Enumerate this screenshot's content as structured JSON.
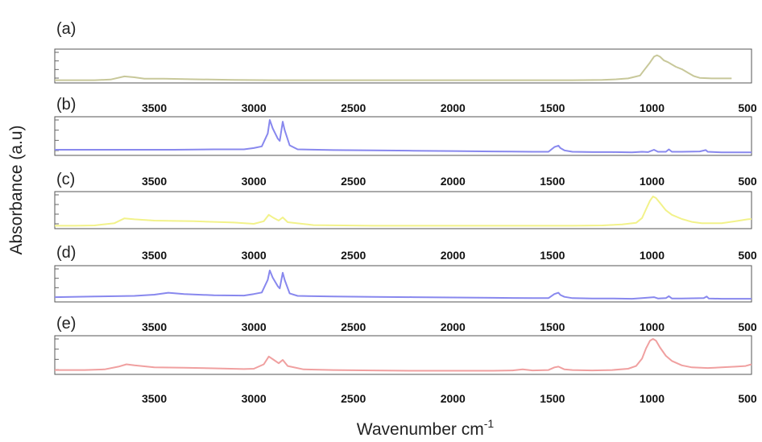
{
  "chart_data": {
    "type": "line",
    "xlabel": "Wavenumber cm",
    "xlabel_superscript": "-1",
    "ylabel": "Absorbance (a.u)",
    "x_reversed": true,
    "xlim": [
      4000,
      500
    ],
    "x_ticks": [
      3500,
      3000,
      2500,
      2000,
      1500,
      1000,
      500
    ],
    "x_tick_labels": [
      "3500",
      "3000",
      "2500",
      "2000",
      "1500",
      "1000",
      "500"
    ],
    "ylim": [
      0,
      1
    ],
    "grid": false,
    "series": [
      {
        "label": "(a)",
        "color": "#c8c89a",
        "points": [
          [
            4000,
            0.04
          ],
          [
            3900,
            0.04
          ],
          [
            3800,
            0.04
          ],
          [
            3720,
            0.06
          ],
          [
            3650,
            0.17
          ],
          [
            3600,
            0.14
          ],
          [
            3550,
            0.09
          ],
          [
            3450,
            0.09
          ],
          [
            3300,
            0.07
          ],
          [
            3100,
            0.05
          ],
          [
            2900,
            0.04
          ],
          [
            2600,
            0.04
          ],
          [
            2300,
            0.04
          ],
          [
            2000,
            0.04
          ],
          [
            1700,
            0.04
          ],
          [
            1400,
            0.04
          ],
          [
            1250,
            0.05
          ],
          [
            1180,
            0.07
          ],
          [
            1120,
            0.1
          ],
          [
            1090,
            0.15
          ],
          [
            1060,
            0.2
          ],
          [
            1040,
            0.38
          ],
          [
            1010,
            0.65
          ],
          [
            990,
            0.85
          ],
          [
            975,
            0.9
          ],
          [
            960,
            0.85
          ],
          [
            940,
            0.72
          ],
          [
            920,
            0.66
          ],
          [
            905,
            0.6
          ],
          [
            880,
            0.5
          ],
          [
            850,
            0.42
          ],
          [
            820,
            0.3
          ],
          [
            790,
            0.18
          ],
          [
            760,
            0.12
          ],
          [
            700,
            0.1
          ],
          [
            650,
            0.1
          ],
          [
            600,
            0.1
          ]
        ]
      },
      {
        "label": "(b)",
        "color": "#8888ee",
        "points": [
          [
            4000,
            0.12
          ],
          [
            3800,
            0.12
          ],
          [
            3600,
            0.12
          ],
          [
            3400,
            0.12
          ],
          [
            3200,
            0.13
          ],
          [
            3050,
            0.13
          ],
          [
            3000,
            0.17
          ],
          [
            2960,
            0.22
          ],
          [
            2930,
            0.6
          ],
          [
            2920,
            1.0
          ],
          [
            2905,
            0.75
          ],
          [
            2880,
            0.45
          ],
          [
            2870,
            0.38
          ],
          [
            2855,
            0.95
          ],
          [
            2845,
            0.7
          ],
          [
            2820,
            0.25
          ],
          [
            2780,
            0.13
          ],
          [
            2600,
            0.11
          ],
          [
            2400,
            0.1
          ],
          [
            2200,
            0.09
          ],
          [
            2000,
            0.08
          ],
          [
            1800,
            0.07
          ],
          [
            1600,
            0.06
          ],
          [
            1520,
            0.06
          ],
          [
            1490,
            0.2
          ],
          [
            1470,
            0.24
          ],
          [
            1460,
            0.17
          ],
          [
            1440,
            0.1
          ],
          [
            1400,
            0.06
          ],
          [
            1300,
            0.05
          ],
          [
            1200,
            0.05
          ],
          [
            1100,
            0.04
          ],
          [
            1050,
            0.06
          ],
          [
            1020,
            0.05
          ],
          [
            990,
            0.12
          ],
          [
            970,
            0.06
          ],
          [
            930,
            0.06
          ],
          [
            915,
            0.13
          ],
          [
            900,
            0.06
          ],
          [
            850,
            0.06
          ],
          [
            760,
            0.07
          ],
          [
            730,
            0.11
          ],
          [
            720,
            0.06
          ],
          [
            650,
            0.04
          ],
          [
            500,
            0.04
          ]
        ]
      },
      {
        "label": "(c)",
        "color": "#f2f28a",
        "points": [
          [
            4000,
            0.04
          ],
          [
            3900,
            0.04
          ],
          [
            3800,
            0.05
          ],
          [
            3700,
            0.12
          ],
          [
            3650,
            0.27
          ],
          [
            3600,
            0.24
          ],
          [
            3500,
            0.2
          ],
          [
            3300,
            0.18
          ],
          [
            3100,
            0.14
          ],
          [
            3000,
            0.1
          ],
          [
            2950,
            0.18
          ],
          [
            2925,
            0.38
          ],
          [
            2900,
            0.28
          ],
          [
            2875,
            0.2
          ],
          [
            2855,
            0.3
          ],
          [
            2830,
            0.15
          ],
          [
            2700,
            0.06
          ],
          [
            2400,
            0.04
          ],
          [
            2000,
            0.04
          ],
          [
            1600,
            0.04
          ],
          [
            1400,
            0.04
          ],
          [
            1250,
            0.05
          ],
          [
            1150,
            0.08
          ],
          [
            1080,
            0.13
          ],
          [
            1050,
            0.28
          ],
          [
            1030,
            0.55
          ],
          [
            1010,
            0.82
          ],
          [
            995,
            0.95
          ],
          [
            980,
            0.9
          ],
          [
            960,
            0.75
          ],
          [
            930,
            0.52
          ],
          [
            900,
            0.38
          ],
          [
            850,
            0.25
          ],
          [
            800,
            0.16
          ],
          [
            750,
            0.12
          ],
          [
            650,
            0.12
          ],
          [
            580,
            0.18
          ],
          [
            520,
            0.24
          ],
          [
            500,
            0.25
          ]
        ]
      },
      {
        "label": "(d)",
        "color": "#8888ee",
        "points": [
          [
            4000,
            0.1
          ],
          [
            3800,
            0.12
          ],
          [
            3600,
            0.14
          ],
          [
            3500,
            0.18
          ],
          [
            3430,
            0.24
          ],
          [
            3350,
            0.2
          ],
          [
            3200,
            0.16
          ],
          [
            3050,
            0.15
          ],
          [
            3000,
            0.2
          ],
          [
            2960,
            0.25
          ],
          [
            2930,
            0.65
          ],
          [
            2920,
            0.95
          ],
          [
            2905,
            0.72
          ],
          [
            2880,
            0.45
          ],
          [
            2870,
            0.38
          ],
          [
            2855,
            0.88
          ],
          [
            2845,
            0.65
          ],
          [
            2820,
            0.22
          ],
          [
            2780,
            0.14
          ],
          [
            2600,
            0.12
          ],
          [
            2400,
            0.11
          ],
          [
            2200,
            0.1
          ],
          [
            2000,
            0.09
          ],
          [
            1800,
            0.08
          ],
          [
            1600,
            0.07
          ],
          [
            1520,
            0.07
          ],
          [
            1490,
            0.2
          ],
          [
            1470,
            0.24
          ],
          [
            1460,
            0.17
          ],
          [
            1440,
            0.11
          ],
          [
            1400,
            0.07
          ],
          [
            1300,
            0.06
          ],
          [
            1200,
            0.06
          ],
          [
            1100,
            0.05
          ],
          [
            1050,
            0.07
          ],
          [
            990,
            0.1
          ],
          [
            970,
            0.06
          ],
          [
            930,
            0.07
          ],
          [
            915,
            0.13
          ],
          [
            900,
            0.06
          ],
          [
            850,
            0.06
          ],
          [
            740,
            0.07
          ],
          [
            725,
            0.12
          ],
          [
            715,
            0.06
          ],
          [
            650,
            0.05
          ],
          [
            500,
            0.05
          ]
        ]
      },
      {
        "label": "(e)",
        "color": "#f0a0a0",
        "points": [
          [
            4000,
            0.08
          ],
          [
            3850,
            0.08
          ],
          [
            3750,
            0.1
          ],
          [
            3680,
            0.18
          ],
          [
            3640,
            0.25
          ],
          [
            3600,
            0.22
          ],
          [
            3500,
            0.16
          ],
          [
            3350,
            0.15
          ],
          [
            3200,
            0.13
          ],
          [
            3050,
            0.11
          ],
          [
            3000,
            0.12
          ],
          [
            2950,
            0.25
          ],
          [
            2925,
            0.48
          ],
          [
            2900,
            0.38
          ],
          [
            2875,
            0.28
          ],
          [
            2855,
            0.38
          ],
          [
            2830,
            0.2
          ],
          [
            2750,
            0.1
          ],
          [
            2600,
            0.08
          ],
          [
            2400,
            0.07
          ],
          [
            2200,
            0.06
          ],
          [
            2000,
            0.06
          ],
          [
            1800,
            0.06
          ],
          [
            1700,
            0.07
          ],
          [
            1650,
            0.1
          ],
          [
            1600,
            0.07
          ],
          [
            1520,
            0.08
          ],
          [
            1490,
            0.16
          ],
          [
            1470,
            0.18
          ],
          [
            1440,
            0.1
          ],
          [
            1400,
            0.08
          ],
          [
            1300,
            0.07
          ],
          [
            1200,
            0.08
          ],
          [
            1120,
            0.12
          ],
          [
            1080,
            0.2
          ],
          [
            1050,
            0.42
          ],
          [
            1030,
            0.72
          ],
          [
            1010,
            0.95
          ],
          [
            995,
            1.0
          ],
          [
            980,
            0.95
          ],
          [
            960,
            0.75
          ],
          [
            930,
            0.5
          ],
          [
            900,
            0.35
          ],
          [
            850,
            0.22
          ],
          [
            800,
            0.16
          ],
          [
            720,
            0.14
          ],
          [
            650,
            0.16
          ],
          [
            580,
            0.18
          ],
          [
            530,
            0.2
          ],
          [
            500,
            0.25
          ]
        ]
      }
    ]
  }
}
